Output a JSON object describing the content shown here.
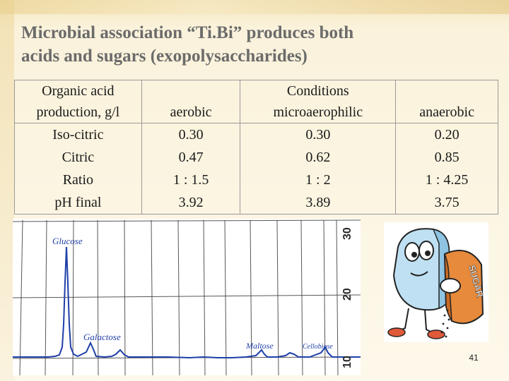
{
  "title": {
    "line1": "Microbial association “Ti.Bi” produces both",
    "line2": "acids and sugars (exopolysaccharides)"
  },
  "table": {
    "header": {
      "row_label_line1": "Organic acid",
      "row_label_line2": "production, g/l",
      "conditions_label": "Conditions",
      "columns": [
        "aerobic",
        "microaerophilic",
        "anaerobic"
      ]
    },
    "row_labels": [
      "Iso-citric",
      "Citric",
      "Ratio",
      "pH final"
    ],
    "columns": [
      {
        "values": [
          "0.30",
          "0.47",
          "1 : 1.5",
          "3.92"
        ]
      },
      {
        "values": [
          "0.30",
          "0.62",
          "1 : 2",
          "3.89"
        ]
      },
      {
        "values": [
          "0.20",
          "0.85",
          "1 : 4.25",
          "3.75"
        ]
      }
    ]
  },
  "chromatogram": {
    "peaks": [
      "Glucose",
      "Galactose",
      "Maltose",
      "Cellobiose"
    ],
    "scale_labels": [
      "30",
      "20",
      "10"
    ]
  },
  "cartoon": {
    "bag_label": "SUGAR"
  },
  "page_number": "41"
}
